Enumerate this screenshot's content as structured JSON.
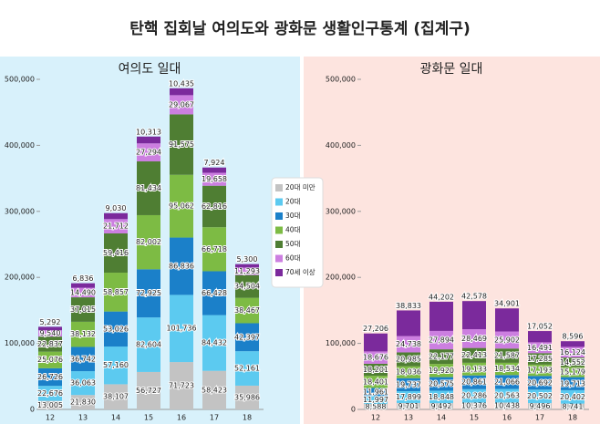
{
  "title": "탄핵 집회날 여의도와 광화문 생활인구통계 (집계구)",
  "chart_data": [
    {
      "type": "stacked-bar",
      "title": "여의도 일대",
      "categories": [
        "12",
        "13",
        "14",
        "15",
        "16",
        "17",
        "18"
      ],
      "ylim": [
        0,
        500000
      ],
      "yticks": [
        0,
        {
          "value": 100000,
          "label": "100,000"
        },
        {
          "value": 200000,
          "label": "200,000"
        },
        {
          "value": 300000,
          "label": "300,000"
        },
        {
          "value": 400000,
          "label": "400,000"
        },
        {
          "value": 500000,
          "label": "500,000"
        }
      ],
      "series": [
        {
          "name": "20대 미만",
          "color": "#c3c3c3",
          "values": [
            13005,
            21830,
            38107,
            56727,
            71723,
            58423,
            35986
          ],
          "value_labels": [
            "13,005",
            "21,830",
            "38,107",
            "56,727",
            "71,723",
            "58,423",
            "35,986"
          ]
        },
        {
          "name": "20대",
          "color": "#5ccaf0",
          "values": [
            22676,
            36063,
            57160,
            82604,
            101736,
            84432,
            52161
          ],
          "value_labels": [
            "22,676",
            "36,063",
            "57,160",
            "82,604",
            "101,736",
            "84,432",
            "52,161"
          ]
        },
        {
          "name": "30대",
          "color": "#1b80c9",
          "values": [
            26726,
            36742,
            53026,
            72925,
            86836,
            66428,
            42397
          ],
          "value_labels": [
            "26,726",
            "36,742",
            "53,026",
            "72,925",
            "86,836",
            "66,428",
            "42,397"
          ]
        },
        {
          "name": "40대",
          "color": "#7dbb44",
          "values": [
            25076,
            38132,
            58857,
            82002,
            95062,
            66718,
            38467
          ],
          "value_labels": [
            "25,076",
            "38,132",
            "58,857",
            "82,002",
            "95,062",
            "66,718",
            "38,467"
          ]
        },
        {
          "name": "50대",
          "color": "#4f7e33",
          "values": [
            22837,
            37015,
            59416,
            81434,
            91575,
            62816,
            34504
          ],
          "value_labels": [
            "22,837",
            "37,015",
            "59,416",
            "81,434",
            "91,575",
            "62,816",
            "34,504"
          ]
        },
        {
          "name": "60대",
          "color": "#cc7fe0",
          "values": [
            9540,
            14490,
            21712,
            27294,
            29067,
            19658,
            11293
          ],
          "value_labels": [
            "9,540",
            "14,490",
            "21,712",
            "27,294",
            "29,067",
            "19,658",
            "11,293"
          ]
        },
        {
          "name": "70세 이상",
          "color": "#7b2a9c",
          "values": [
            5292,
            6836,
            9030,
            10313,
            10435,
            7924,
            5300
          ],
          "value_labels": [
            "5,292",
            "6,836",
            "9,030",
            "10,313",
            "10,435",
            "7,924",
            "5,300"
          ]
        }
      ]
    },
    {
      "type": "stacked-bar",
      "title": "광화문 일대",
      "categories": [
        "12",
        "13",
        "14",
        "15",
        "16",
        "17",
        "18"
      ],
      "ylim": [
        0,
        500000
      ],
      "yticks": [
        0,
        {
          "value": 100000,
          "label": "100,000"
        },
        {
          "value": 200000,
          "label": "200,000"
        },
        {
          "value": 300000,
          "label": "300,000"
        },
        {
          "value": 400000,
          "label": "400,000"
        },
        {
          "value": 500000,
          "label": "500,000"
        }
      ],
      "series": [
        {
          "color": "#c3c3c3",
          "values": [
            8588,
            9701,
            9492,
            10376,
            10438,
            9496,
            8741
          ],
          "value_labels": [
            "8,588",
            "9,701",
            "9,492",
            "10,376",
            "10,438",
            "9,496",
            "8,741"
          ]
        },
        {
          "color": "#5ccaf0",
          "values": [
            11997,
            17899,
            18848,
            20286,
            20563,
            20502,
            20402
          ],
          "value_labels": [
            "11,997",
            "17,899",
            "18,848",
            "20,286",
            "20,563",
            "20,502",
            "20,402"
          ]
        },
        {
          "color": "#1b80c9",
          "values": [
            11961,
            19737,
            20575,
            20861,
            21066,
            20692,
            19713
          ],
          "value_labels": [
            "11,961",
            "19,737",
            "20,575",
            "20,861",
            "21,066",
            "20,692",
            "19,713"
          ]
        },
        {
          "color": "#7dbb44",
          "values": [
            18401,
            18036,
            19920,
            19133,
            18534,
            17193,
            15179
          ],
          "value_labels": [
            "18,401",
            "18,036",
            "19,920",
            "19,133",
            "18,534",
            "17,193",
            "15,179"
          ]
        },
        {
          "color": "#4f7e33",
          "values": [
            18201,
            20985,
            22177,
            22413,
            21587,
            17285,
            14552
          ],
          "value_labels": [
            "18,201",
            "20,985",
            "22,177",
            "22,413",
            "21,587",
            "17,285",
            "14,552"
          ]
        },
        {
          "color": "#cc7fe0",
          "values": [
            18676,
            24738,
            27894,
            28469,
            25902,
            16491,
            16124
          ],
          "value_labels": [
            "18,676",
            "24,738",
            "27,894",
            "28,469",
            "25,902",
            "16,491",
            "16,124"
          ]
        },
        {
          "color": "#7b2a9c",
          "values": [
            27206,
            38833,
            44202,
            42578,
            34901,
            17052,
            8596
          ],
          "value_labels": [
            "27,206",
            "38,833",
            "44,202",
            "42,578",
            "34,901",
            "17,052",
            "8,596"
          ]
        }
      ]
    }
  ]
}
